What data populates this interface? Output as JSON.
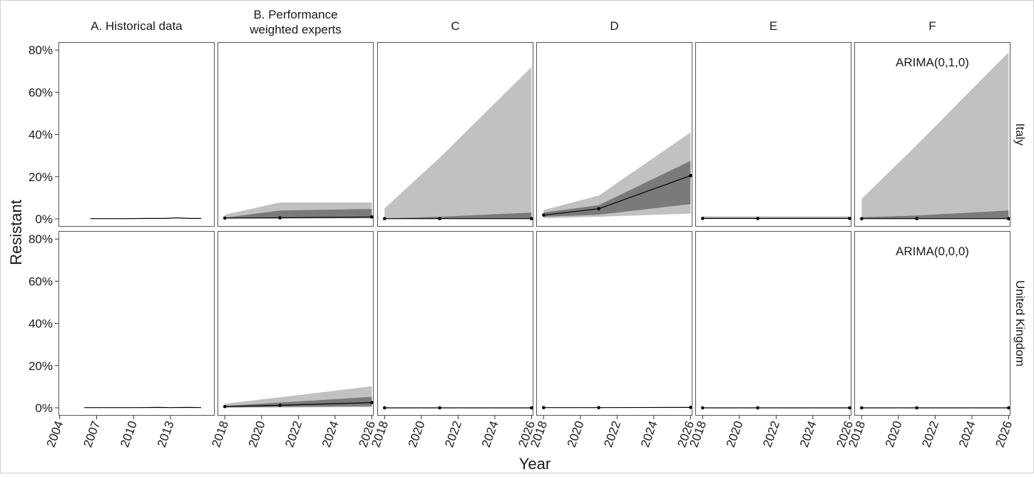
{
  "chart_data": {
    "type": "area",
    "xlabel": "Year",
    "ylabel": "Resistant",
    "ylim": [
      0,
      0.8
    ],
    "y_ticks": [
      "0%",
      "20%",
      "40%",
      "60%",
      "80%"
    ],
    "grid": false,
    "band_colors": {
      "outer": "#c1c1c1",
      "inner": "#7a7a7a",
      "line": "#000000"
    },
    "columns": [
      {
        "title_lines": [
          "A. Historical data"
        ],
        "x_ticks": [
          2004,
          2007,
          2010,
          2013
        ],
        "xlim": [
          2003.9,
          2016.6
        ]
      },
      {
        "title_lines": [
          "B. Performance",
          "weighted experts"
        ],
        "x_ticks": [
          2018,
          2020,
          2022,
          2024,
          2026
        ],
        "xlim": [
          2017.6,
          2026.1
        ]
      },
      {
        "title_lines": [
          "C"
        ],
        "x_ticks": [
          2018,
          2020,
          2022,
          2024,
          2026
        ],
        "xlim": [
          2017.6,
          2026.1
        ]
      },
      {
        "title_lines": [
          "D"
        ],
        "x_ticks": [
          2018,
          2020,
          2022,
          2024,
          2026
        ],
        "xlim": [
          2017.6,
          2026.1
        ]
      },
      {
        "title_lines": [
          "E"
        ],
        "x_ticks": [
          2018,
          2020,
          2022,
          2024,
          2026
        ],
        "xlim": [
          2017.6,
          2026.1
        ]
      },
      {
        "title_lines": [
          "F"
        ],
        "x_ticks": [
          2018,
          2020,
          2022,
          2024,
          2026
        ],
        "xlim": [
          2017.6,
          2026.1
        ]
      }
    ],
    "rows": [
      {
        "label": "Italy",
        "panels": [
          {
            "line_only": true,
            "x": [
              2006.5,
              2008,
              2009.5,
              2011,
              2012.5,
              2013.5,
              2014.5,
              2015.5
            ],
            "y": [
              0.001,
              0.001,
              0.001,
              0.002,
              0.002,
              0.005,
              0.002,
              0.002
            ]
          },
          {
            "x": [
              2018,
              2021,
              2026
            ],
            "y": [
              0.004,
              0.005,
              0.009
            ],
            "inner_lo": [
              0.002,
              0.003,
              0.004
            ],
            "inner_hi": [
              0.006,
              0.04,
              0.047
            ],
            "outer_lo": [
              0.001,
              0.002,
              0.002
            ],
            "outer_hi": [
              0.02,
              0.078,
              0.078
            ]
          },
          {
            "x": [
              2018,
              2021,
              2026
            ],
            "y": [
              0.001,
              0.001,
              0.001
            ],
            "inner_lo": [
              0.0,
              0.0,
              0.0
            ],
            "inner_hi": [
              0.002,
              0.01,
              0.03
            ],
            "outer_lo": [
              0.0,
              0.0,
              0.0
            ],
            "outer_hi": [
              0.05,
              0.29,
              0.72
            ]
          },
          {
            "x": [
              2018,
              2021,
              2026
            ],
            "y": [
              0.018,
              0.048,
              0.205
            ],
            "inner_lo": [
              0.01,
              0.02,
              0.07
            ],
            "inner_hi": [
              0.03,
              0.065,
              0.275
            ],
            "outer_lo": [
              0.003,
              0.01,
              0.025
            ],
            "outer_hi": [
              0.042,
              0.11,
              0.41
            ]
          },
          {
            "x": [
              2018,
              2021,
              2026
            ],
            "y": [
              0.002,
              0.002,
              0.002
            ],
            "inner_lo": [
              0.001,
              0.001,
              0.001
            ],
            "inner_hi": [
              0.004,
              0.004,
              0.004
            ],
            "outer_lo": [
              0.0,
              0.0,
              0.0
            ],
            "outer_hi": [
              0.012,
              0.012,
              0.012
            ]
          },
          {
            "x": [
              2018,
              2021,
              2026
            ],
            "y": [
              0.001,
              0.001,
              0.001
            ],
            "inner_lo": [
              0.0,
              0.0,
              0.0
            ],
            "inner_hi": [
              0.008,
              0.016,
              0.04
            ],
            "outer_lo": [
              0.0,
              0.0,
              0.0
            ],
            "outer_hi": [
              0.095,
              0.35,
              0.79
            ]
          }
        ]
      },
      {
        "label": "United Kingdom",
        "panels": [
          {
            "line_only": true,
            "x": [
              2006,
              2007.5,
              2009,
              2010.5,
              2012,
              2013,
              2014.5,
              2015.5
            ],
            "y": [
              0.001,
              0.001,
              0.001,
              0.001,
              0.002,
              0.001,
              0.002,
              0.001
            ]
          },
          {
            "x": [
              2018,
              2021,
              2026
            ],
            "y": [
              0.006,
              0.012,
              0.025
            ],
            "inner_lo": [
              0.002,
              0.004,
              0.008
            ],
            "inner_hi": [
              0.009,
              0.025,
              0.052
            ],
            "outer_lo": [
              0.001,
              0.002,
              0.003
            ],
            "outer_hi": [
              0.02,
              0.05,
              0.102
            ]
          },
          {
            "x": [
              2018,
              2021,
              2026
            ],
            "y": [
              0.0,
              0.0,
              0.0
            ]
          },
          {
            "x": [
              2018,
              2021,
              2026
            ],
            "y": [
              0.001,
              0.001,
              0.002
            ]
          },
          {
            "x": [
              2018,
              2021,
              2026
            ],
            "y": [
              0.0,
              0.0,
              0.0
            ]
          },
          {
            "x": [
              2018,
              2021,
              2026
            ],
            "y": [
              0.0,
              0.0,
              0.0
            ]
          }
        ]
      }
    ],
    "annotations": [
      {
        "row": 0,
        "col": 5,
        "text": "ARIMA(0,1,0)"
      },
      {
        "row": 1,
        "col": 5,
        "text": "ARIMA(0,0,0)"
      }
    ]
  }
}
